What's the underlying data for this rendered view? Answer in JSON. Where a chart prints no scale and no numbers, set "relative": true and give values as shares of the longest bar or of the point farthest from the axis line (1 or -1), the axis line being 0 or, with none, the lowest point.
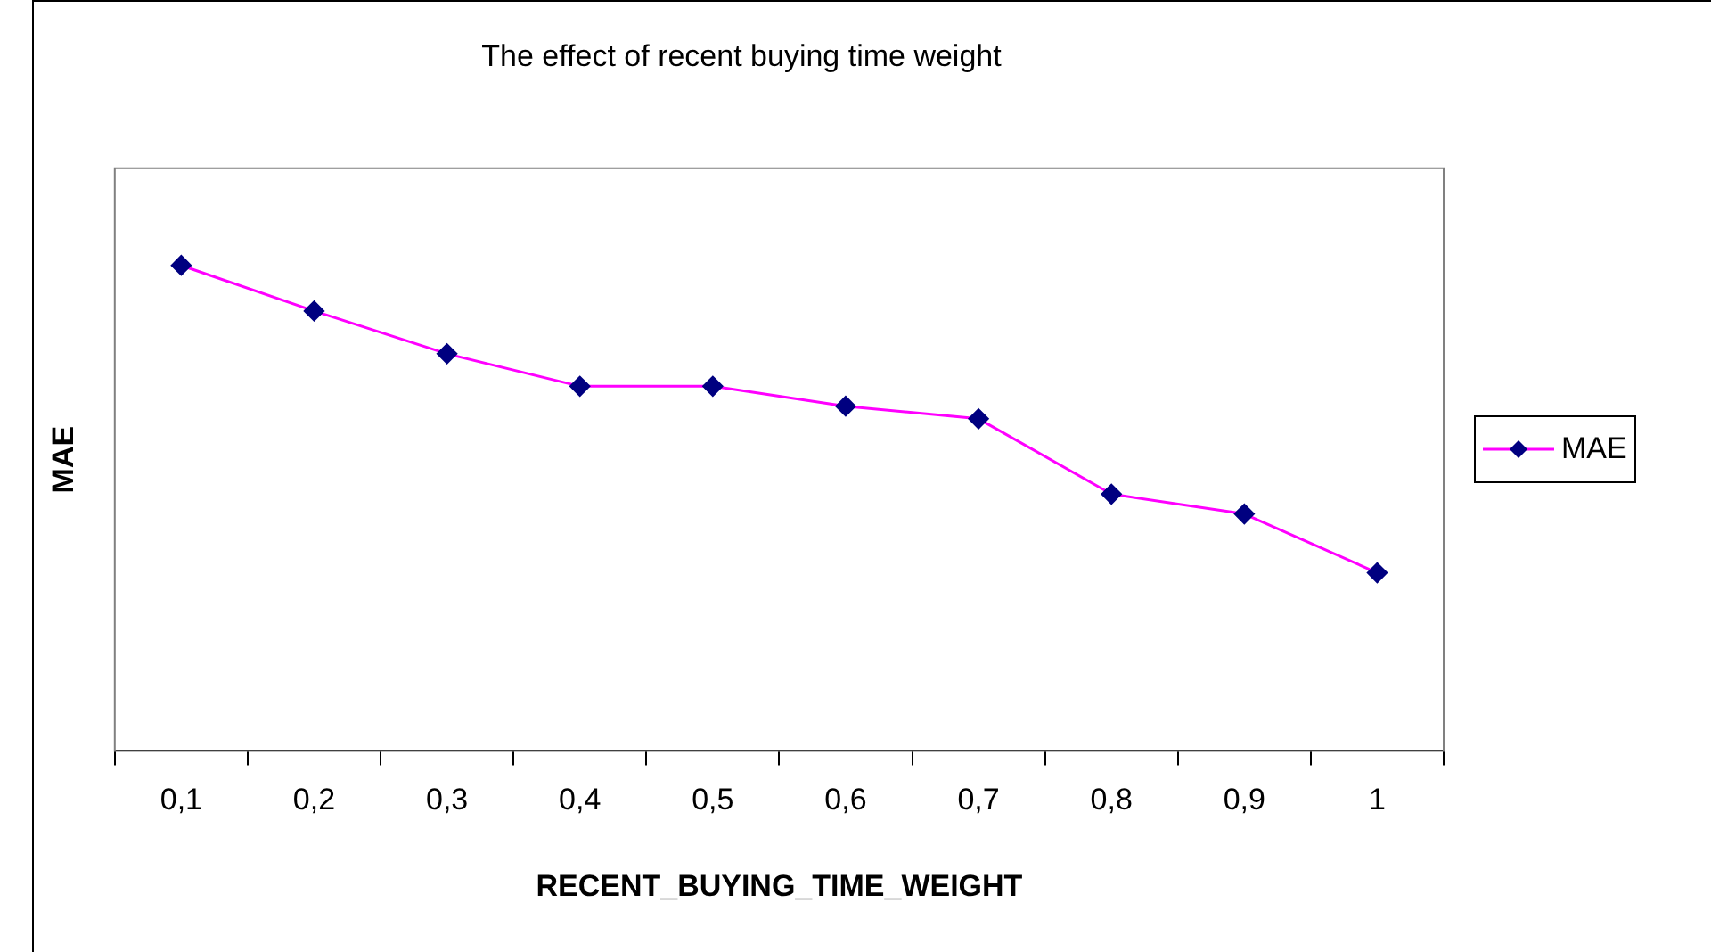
{
  "chart_data": {
    "type": "line",
    "title": "The effect of recent buying time weight",
    "xlabel": "RECENT_BUYING_TIME_WEIGHT",
    "ylabel": "MAE",
    "relative": true,
    "categories": [
      "0,1",
      "0,2",
      "0,3",
      "0,4",
      "0,5",
      "0,6",
      "0,7",
      "0,8",
      "0,9",
      "1"
    ],
    "series": [
      {
        "name": "MAE",
        "color": "#ff00ff",
        "values": [
          1,
          0.906,
          0.818,
          0.751,
          0.751,
          0.71,
          0.684,
          0.529,
          0.488,
          0.367
        ]
      }
    ],
    "legend": "right",
    "marker": "diamond",
    "line_style": "solid",
    "grid": false
  }
}
